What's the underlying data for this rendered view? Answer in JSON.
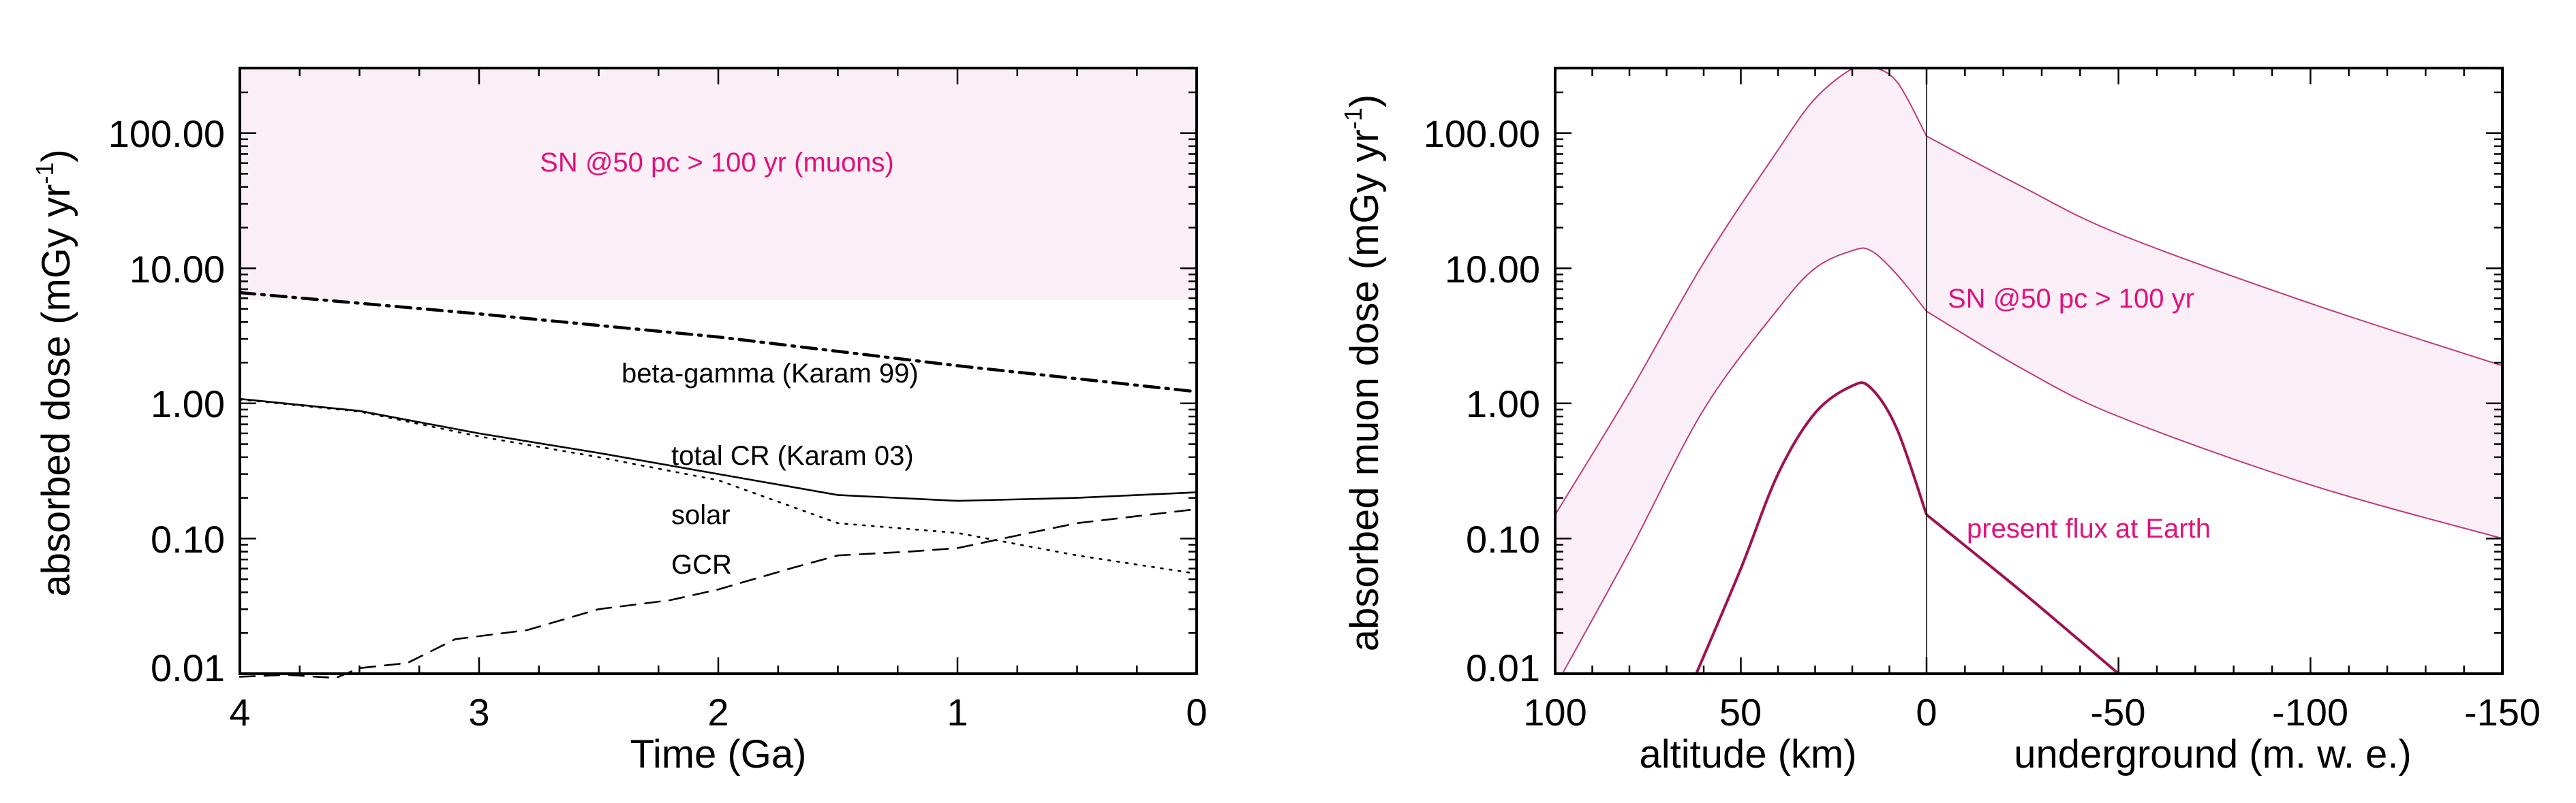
{
  "chart_data": [
    {
      "type": "line",
      "xlabel": "Time (Ga)",
      "ylabel": "absorbed dose (mGy yr",
      "ylabel_sup": "-1",
      "ylabel_close": ")",
      "xlim": [
        4,
        0
      ],
      "ylim": [
        0.01,
        300
      ],
      "yscale": "log",
      "xticks": [
        "4",
        "3",
        "2",
        "1",
        "0"
      ],
      "yticks": [
        "0.01",
        "0.10",
        "1.00",
        "10.00",
        "100.00"
      ],
      "band": {
        "label": "SN @50 pc > 100 yr (muons)",
        "y_low": 5.8,
        "y_high": 300,
        "color": "#fbeff7"
      },
      "series": [
        {
          "name": "beta-gamma (Karam 99)",
          "style": "dashdot",
          "points": [
            [
              4,
              6.6
            ],
            [
              3,
              4.6
            ],
            [
              2,
              3.1
            ],
            [
              1,
              1.9
            ],
            [
              0,
              1.22
            ]
          ]
        },
        {
          "name": "total CR (Karam 03)",
          "style": "solid",
          "points": [
            [
              4,
              1.08
            ],
            [
              3.5,
              0.88
            ],
            [
              3,
              0.6
            ],
            [
              2.5,
              0.43
            ],
            [
              2,
              0.3
            ],
            [
              1.5,
              0.21
            ],
            [
              1,
              0.19
            ],
            [
              0.5,
              0.2
            ],
            [
              0,
              0.22
            ]
          ]
        },
        {
          "name": "solar",
          "style": "dotted",
          "points": [
            [
              4,
              1.07
            ],
            [
              3.5,
              0.87
            ],
            [
              3,
              0.57
            ],
            [
              2.5,
              0.4
            ],
            [
              2,
              0.27
            ],
            [
              1.5,
              0.13
            ],
            [
              1,
              0.11
            ],
            [
              0.5,
              0.075
            ],
            [
              0,
              0.055
            ]
          ]
        },
        {
          "name": "GCR",
          "style": "dashed",
          "points": [
            [
              4,
              0.0095
            ],
            [
              3.8,
              0.0098
            ],
            [
              3.6,
              0.0093
            ],
            [
              3.5,
              0.011
            ],
            [
              3.3,
              0.012
            ],
            [
              3.1,
              0.018
            ],
            [
              2.8,
              0.021
            ],
            [
              2.5,
              0.03
            ],
            [
              2.2,
              0.035
            ],
            [
              2,
              0.042
            ],
            [
              1.7,
              0.06
            ],
            [
              1.5,
              0.075
            ],
            [
              1.2,
              0.08
            ],
            [
              1,
              0.085
            ],
            [
              0.7,
              0.11
            ],
            [
              0.5,
              0.13
            ],
            [
              0.2,
              0.15
            ],
            [
              0,
              0.165
            ]
          ]
        }
      ]
    },
    {
      "type": "line",
      "xlabel_left": "altitude  (km)",
      "xlabel_right": "underground (m. w. e.)",
      "ylabel": "absorbed muon dose (mGy yr",
      "ylabel_sup": "-1",
      "ylabel_close": ")",
      "ylim": [
        0.01,
        300
      ],
      "yscale": "log",
      "xticks": [
        "100",
        "50",
        "0",
        "-50",
        "-100",
        "-150"
      ],
      "yticks": [
        "0.01",
        "0.10",
        "1.00",
        "10.00",
        "100.00"
      ],
      "band": {
        "label": "SN @50 pc > 100 yr",
        "color": "#fbeff7",
        "altitude_upper": [
          [
            100,
            0.15
          ],
          [
            80,
            1.2
          ],
          [
            60,
            11
          ],
          [
            40,
            75
          ],
          [
            30,
            180
          ],
          [
            20,
            300
          ],
          [
            15,
            310
          ],
          [
            8,
            240
          ],
          [
            0,
            95
          ]
        ],
        "altitude_lower": [
          [
            100,
            0.008
          ],
          [
            80,
            0.08
          ],
          [
            60,
            0.9
          ],
          [
            40,
            5
          ],
          [
            30,
            10
          ],
          [
            20,
            13.5
          ],
          [
            15,
            13.5
          ],
          [
            8,
            9
          ],
          [
            0,
            4.8
          ]
        ],
        "underground_upper": [
          [
            0,
            95
          ],
          [
            -25,
            40
          ],
          [
            -50,
            18
          ],
          [
            -100,
            5.5
          ],
          [
            -150,
            1.9
          ]
        ],
        "underground_lower": [
          [
            0,
            4.8
          ],
          [
            -25,
            1.8
          ],
          [
            -50,
            0.8
          ],
          [
            -100,
            0.25
          ],
          [
            -150,
            0.1
          ]
        ]
      },
      "series": [
        {
          "name": "present flux at Earth",
          "altitude_points": [
            [
              62,
              0.01
            ],
            [
              50,
              0.06
            ],
            [
              40,
              0.3
            ],
            [
              30,
              0.85
            ],
            [
              20,
              1.35
            ],
            [
              15,
              1.3
            ],
            [
              8,
              0.65
            ],
            [
              0,
              0.15
            ]
          ],
          "underground_points": [
            [
              0,
              0.15
            ],
            [
              -25,
              0.04
            ],
            [
              -50,
              0.01
            ]
          ]
        }
      ]
    }
  ]
}
